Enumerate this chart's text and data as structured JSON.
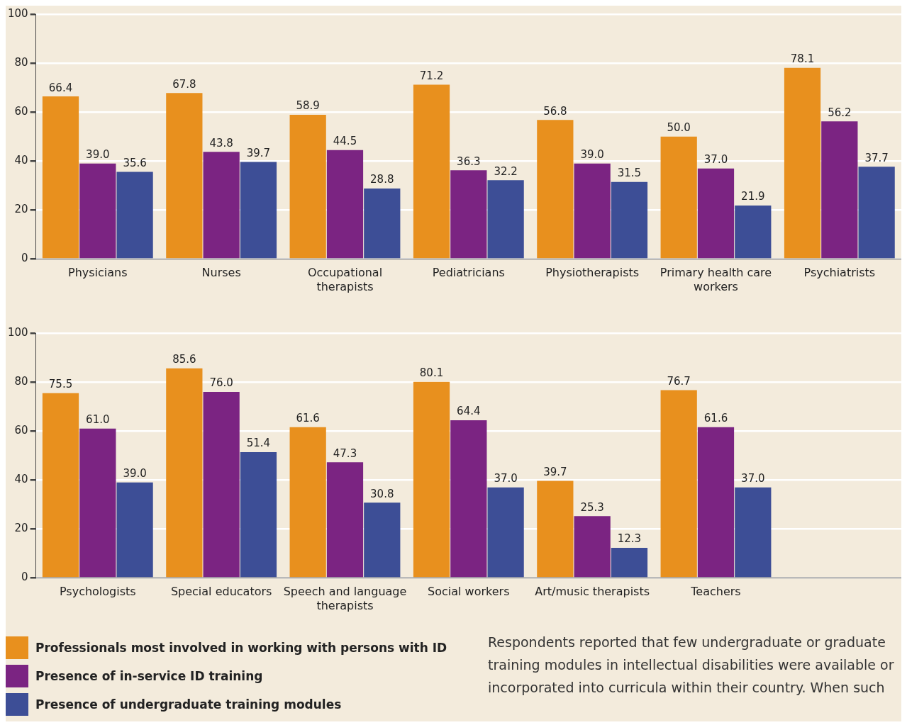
{
  "chart_data": [
    {
      "type": "bar",
      "categories": [
        "Physicians",
        "Nurses",
        "Occupational therapists",
        "Pediatricians",
        "Physiotherapists",
        "Primary health care workers",
        "Psychiatrists"
      ],
      "series": [
        {
          "color": "#e8901e",
          "values": [
            66.4,
            67.8,
            58.9,
            71.2,
            56.8,
            50.0,
            78.1
          ],
          "value_labels": [
            "66.4",
            "67.8",
            "58.9",
            "71.2",
            "56.8",
            "50.0",
            "78.1"
          ]
        },
        {
          "color": "#7b2482",
          "values": [
            39.0,
            43.8,
            44.5,
            36.3,
            39.0,
            37.0,
            56.2
          ],
          "value_labels": [
            "39.0",
            "43.8",
            "44.5",
            "36.3",
            "39.0",
            "37.0",
            "56.2"
          ]
        },
        {
          "color": "#3d4e96",
          "values": [
            35.6,
            39.7,
            28.8,
            32.2,
            31.5,
            21.9,
            37.7
          ],
          "value_labels": [
            "35.6",
            "39.7",
            "28.8",
            "32.2",
            "31.5",
            "21.9",
            "37.7"
          ]
        }
      ],
      "ylim": [
        0,
        100
      ],
      "yticks": [
        0,
        20,
        40,
        60,
        80,
        100
      ],
      "grid": "y",
      "legend": false
    },
    {
      "type": "bar",
      "categories": [
        "Psychologists",
        "Special educators",
        "Speech and language therapists",
        "Social workers",
        "Art/music therapists",
        "Teachers",
        null
      ],
      "series": [
        {
          "name": "Professionals most involved in working with persons with ID",
          "color": "#e8901e",
          "values": [
            75.5,
            85.6,
            61.6,
            80.1,
            39.7,
            76.7,
            null
          ],
          "value_labels": [
            "75.5",
            "85.6",
            "61.6",
            "80.1",
            "39.7",
            "76.7",
            null
          ]
        },
        {
          "name": "Presence of in-service ID training",
          "color": "#7b2482",
          "values": [
            61.0,
            76.0,
            47.3,
            64.4,
            25.3,
            61.6,
            null
          ],
          "value_labels": [
            "61.0",
            "76.0",
            "47.3",
            "64.4",
            "25.3",
            "61.6",
            null
          ]
        },
        {
          "name": "Presence of undergraduate training modules",
          "color": "#3d4e96",
          "values": [
            39.0,
            51.4,
            30.8,
            37.0,
            12.3,
            37.0,
            null
          ],
          "value_labels": [
            "39.0",
            "51.4",
            "30.8",
            "37.0",
            "12.3",
            "37.0",
            null
          ]
        }
      ],
      "ylim": [
        0,
        100
      ],
      "yticks": [
        0,
        20,
        40,
        60,
        80,
        100
      ],
      "grid": "y",
      "legend": "bottom left",
      "annotations": [
        "Respondents reported that few undergraduate or graduate training modules in intellectual disabilities were available or incorporated into curricula within their country. When such"
      ]
    }
  ]
}
